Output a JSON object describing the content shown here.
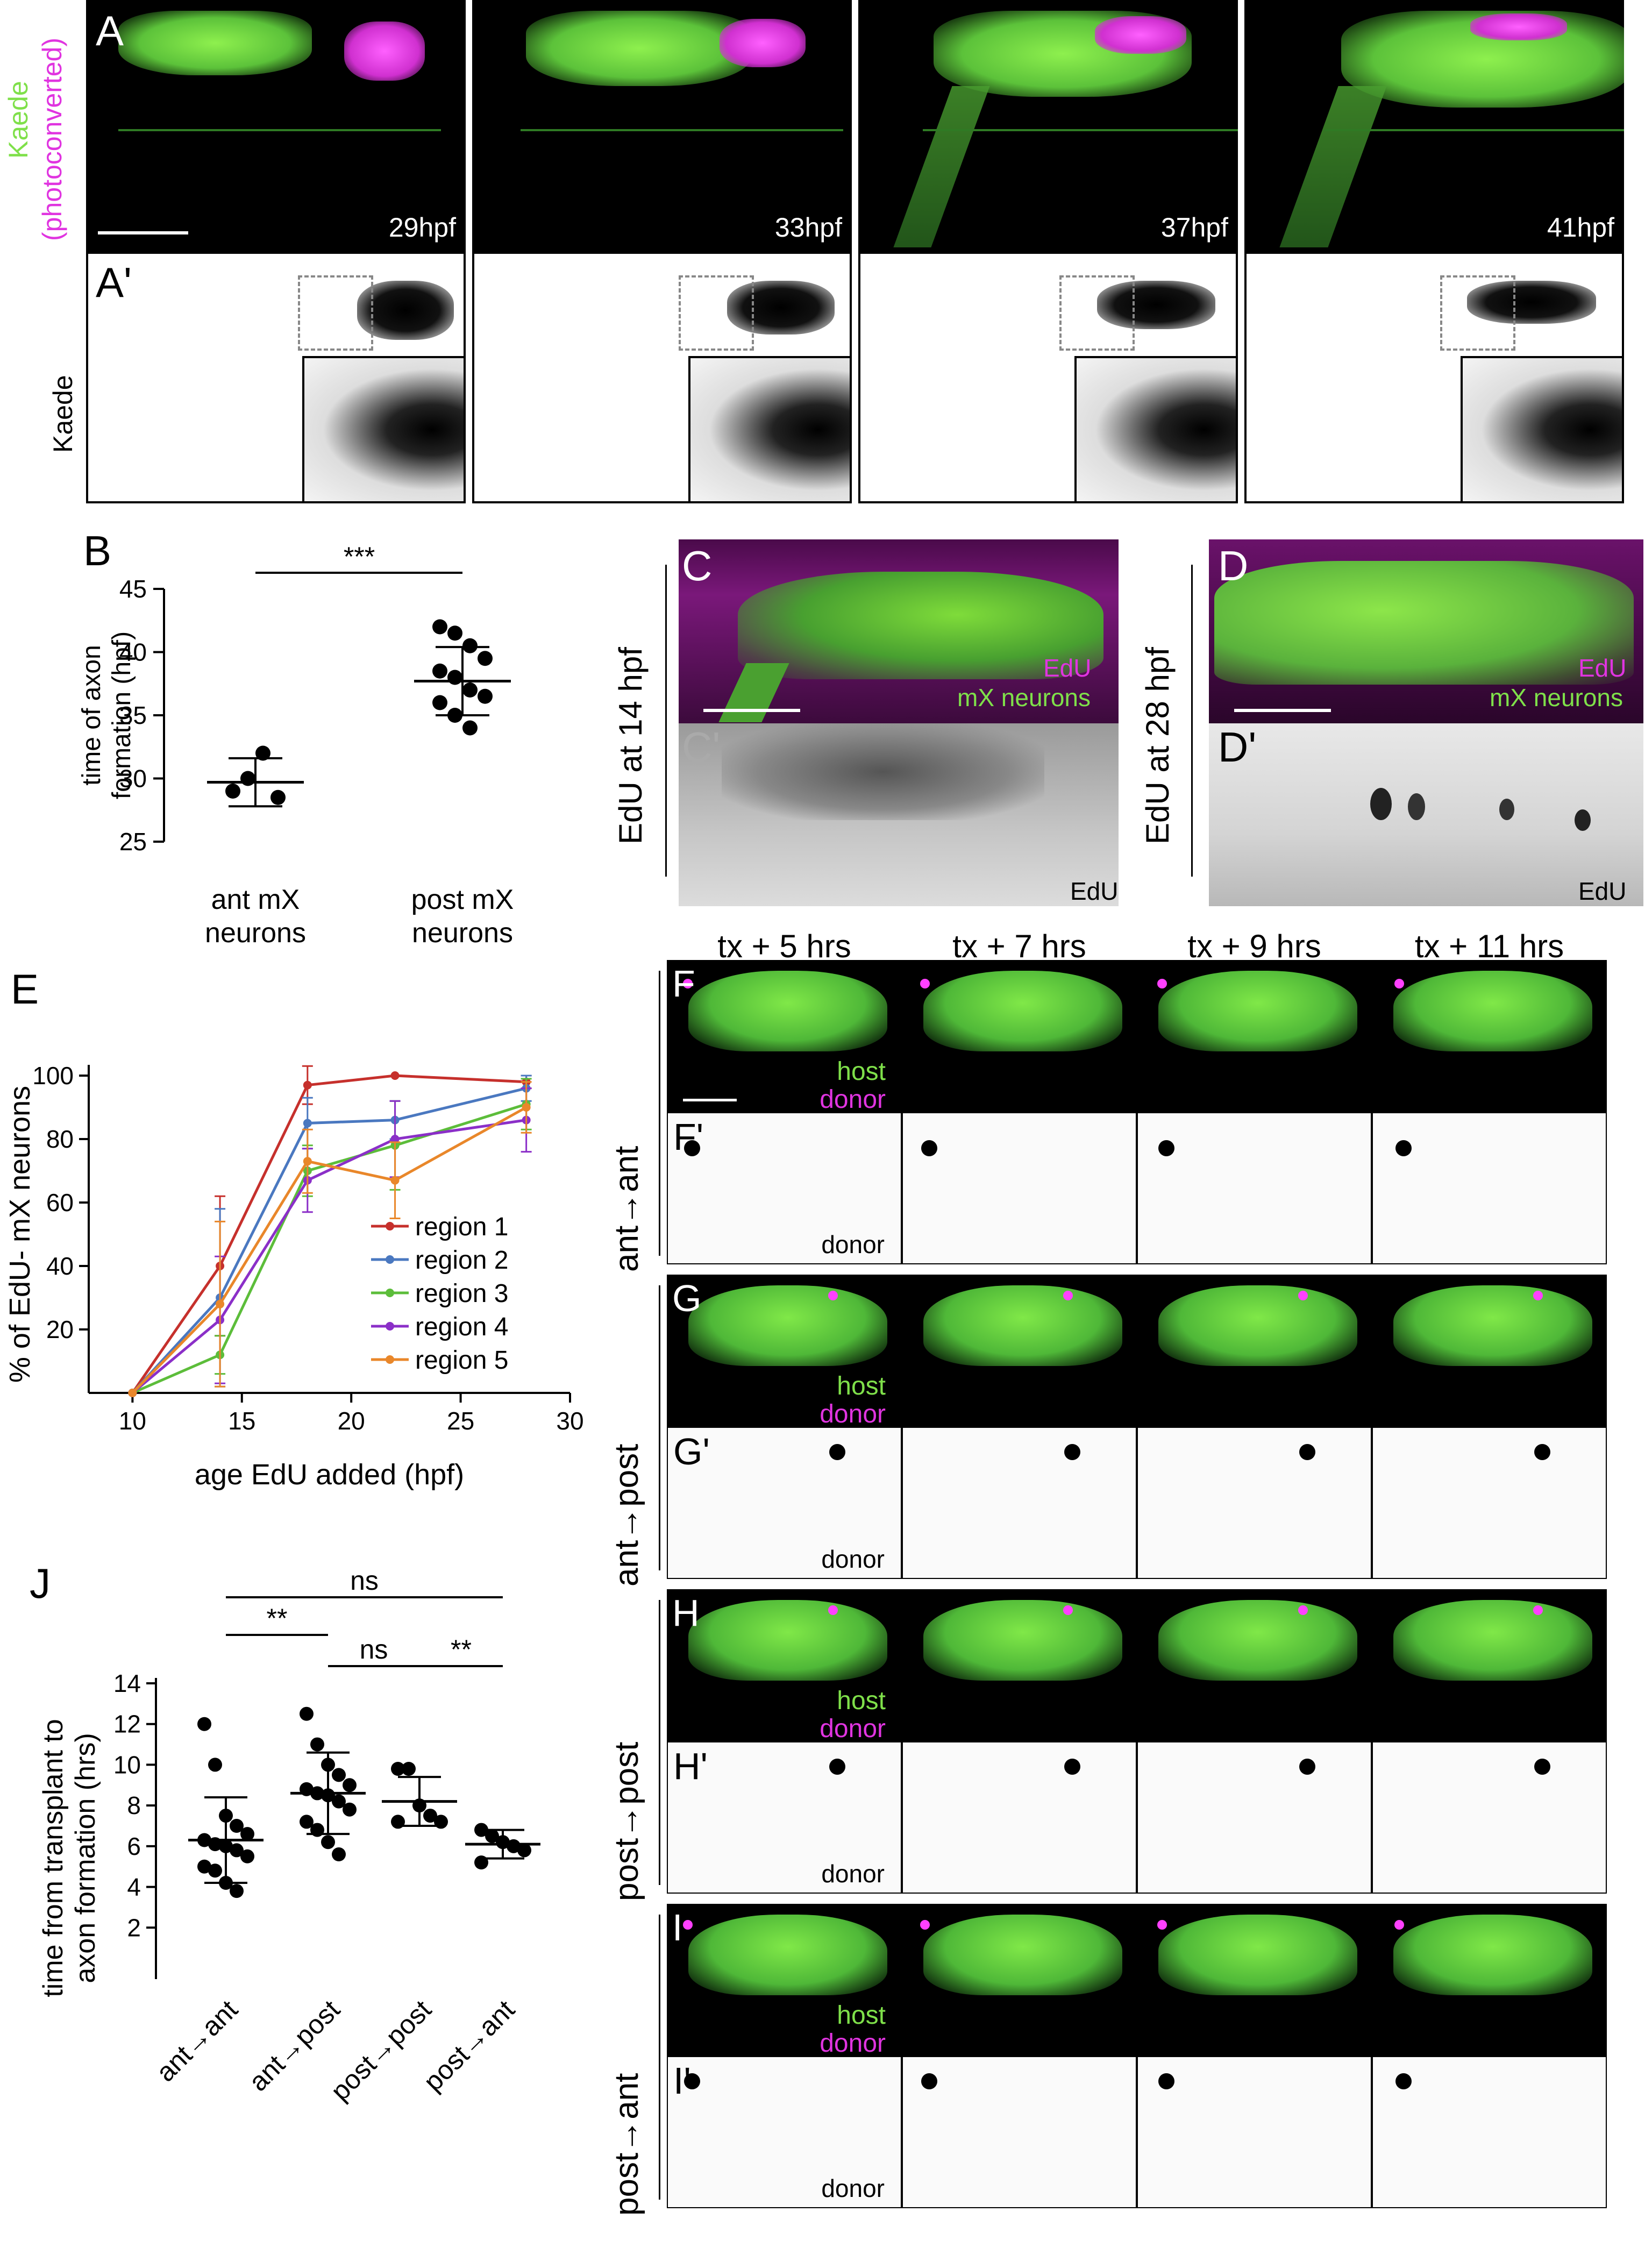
{
  "panels": {
    "A": {
      "letter": "A",
      "prime": "A'",
      "side_top": "Kaede",
      "side_sub": "(photoconverted)",
      "side_bottom": "Kaede",
      "times": [
        "29hpf",
        "33hpf",
        "37hpf",
        "41hpf"
      ]
    },
    "B": {
      "letter": "B",
      "sig": "***"
    },
    "C": {
      "letter": "C",
      "prime": "C'",
      "side": "EdU at 14 hpf",
      "label1": "EdU",
      "label2": "mX neurons",
      "label3": "EdU"
    },
    "D": {
      "letter": "D",
      "prime": "D'",
      "side": "EdU at 28 hpf",
      "label1": "EdU",
      "label2": "mX neurons",
      "label3": "EdU"
    },
    "E": {
      "letter": "E"
    },
    "J": {
      "letter": "J",
      "sig": [
        "ns",
        "**",
        "ns",
        "**"
      ]
    },
    "grid": {
      "col_heads": [
        "tx + 5 hrs",
        "tx + 7 hrs",
        "tx + 9 hrs",
        "tx + 11 hrs"
      ],
      "host": "host",
      "donor": "donor",
      "rows": [
        {
          "letter": "F",
          "prime": "F'",
          "side": "ant→ant"
        },
        {
          "letter": "G",
          "prime": "G'",
          "side": "ant→post"
        },
        {
          "letter": "H",
          "prime": "H'",
          "side": "post→post"
        },
        {
          "letter": "I",
          "prime": "I'",
          "side": "post→ant"
        }
      ]
    }
  },
  "chart_data": [
    {
      "type": "scatter",
      "panel": "B",
      "ylabel": "time of axon formation (hpf)",
      "ylim": [
        25,
        45
      ],
      "yticks": [
        25,
        30,
        35,
        40,
        45
      ],
      "categories": [
        "ant mX neurons",
        "post mX neurons"
      ],
      "category_lines": [
        [
          "ant mX",
          "neurons"
        ],
        [
          "post mX",
          "neurons"
        ]
      ],
      "points": [
        [
          29,
          30,
          32,
          28.5
        ],
        [
          42,
          41.5,
          40.5,
          39.5,
          38.5,
          38,
          37,
          36.5,
          36,
          35,
          34
        ]
      ],
      "mean": [
        29.7,
        37.7
      ],
      "sd": [
        1.9,
        2.7
      ],
      "significance": "***"
    },
    {
      "type": "line",
      "panel": "E",
      "ylabel": "% of EdU- mX neurons",
      "xlabel": "age EdU added (hpf)",
      "xlim": [
        8,
        30
      ],
      "ylim": [
        0,
        100
      ],
      "xticks": [
        10,
        15,
        20,
        25,
        30
      ],
      "yticks": [
        20,
        40,
        60,
        80,
        100
      ],
      "x": [
        10,
        14,
        18,
        22,
        28
      ],
      "series": [
        {
          "name": "region 1",
          "color": "#c6302c",
          "values": [
            0,
            40,
            97,
            100,
            98
          ],
          "err": [
            0,
            22,
            6,
            0,
            2
          ]
        },
        {
          "name": "region 2",
          "color": "#4a78c0",
          "values": [
            0,
            30,
            85,
            86,
            96
          ],
          "err": [
            0,
            28,
            8,
            6,
            4
          ]
        },
        {
          "name": "region 3",
          "color": "#5cbd3a",
          "values": [
            0,
            12,
            70,
            78,
            91
          ],
          "err": [
            0,
            6,
            8,
            14,
            8
          ]
        },
        {
          "name": "region 4",
          "color": "#8b2fc8",
          "values": [
            0,
            23,
            67,
            80,
            86
          ],
          "err": [
            0,
            20,
            10,
            12,
            10
          ]
        },
        {
          "name": "region 5",
          "color": "#e9872a",
          "values": [
            0,
            28,
            73,
            67,
            90
          ],
          "err": [
            0,
            26,
            10,
            12,
            8
          ]
        }
      ]
    },
    {
      "type": "scatter",
      "panel": "J",
      "ylabel": "time from transplant to axon formation (hrs)",
      "ylabel_lines": [
        "time from transplant to",
        "axon formation (hrs)"
      ],
      "ylim": [
        0,
        14
      ],
      "yticks": [
        2,
        4,
        6,
        8,
        10,
        12,
        14
      ],
      "categories": [
        "ant→ant",
        "ant→post",
        "post→post",
        "post→ant"
      ],
      "points": [
        [
          12,
          10,
          7.5,
          7,
          6.6,
          6.3,
          6.1,
          6,
          5.8,
          5.5,
          5,
          4.8,
          4.2,
          3.8
        ],
        [
          12.5,
          11,
          10,
          9.5,
          9,
          8.8,
          8.6,
          8.5,
          8.2,
          7.8,
          7.2,
          6.8,
          6.2,
          5.6
        ],
        [
          9.8,
          9.8,
          8,
          7.5,
          7.2,
          7.2
        ],
        [
          6.8,
          6.5,
          6.2,
          6,
          5.8,
          5.2
        ]
      ],
      "mean": [
        6.3,
        8.6,
        8.2,
        6.1
      ],
      "sd": [
        2.1,
        2.0,
        1.2,
        0.7
      ],
      "comparisons": [
        {
          "pair": [
            0,
            3
          ],
          "label": "ns"
        },
        {
          "pair": [
            0,
            1
          ],
          "label": "**"
        },
        {
          "pair": [
            1,
            2
          ],
          "label": "ns"
        },
        {
          "pair": [
            2,
            3
          ],
          "label": "**"
        }
      ]
    }
  ]
}
